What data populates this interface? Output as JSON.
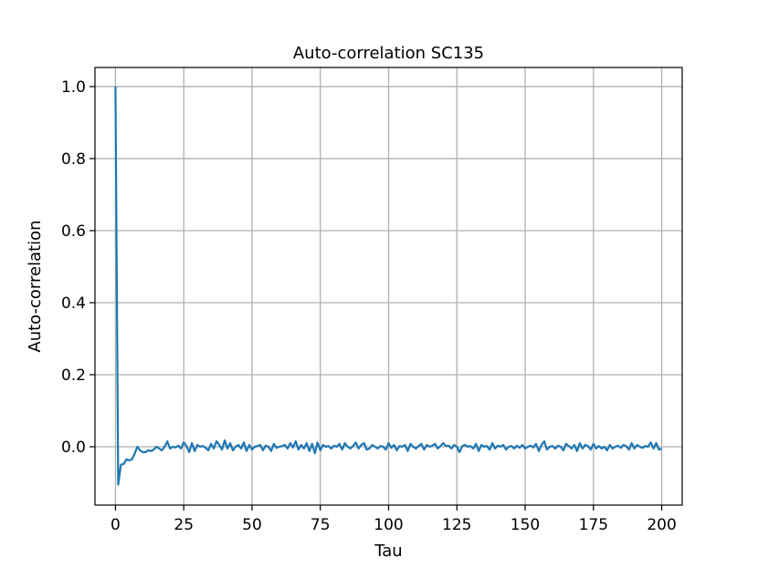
{
  "chart_data": {
    "type": "line",
    "title": "Auto-correlation SC135",
    "xlabel": "Tau",
    "ylabel": "Auto-correlation",
    "xlim": [
      -7.5,
      207.5
    ],
    "ylim": [
      -0.162,
      1.053
    ],
    "xticks": [
      0,
      25,
      50,
      75,
      100,
      125,
      150,
      175,
      200
    ],
    "xtick_labels": [
      "0",
      "25",
      "50",
      "75",
      "100",
      "125",
      "150",
      "175",
      "200"
    ],
    "yticks": [
      0.0,
      0.2,
      0.4,
      0.6,
      0.8,
      1.0
    ],
    "ytick_labels": [
      "0.0",
      "0.2",
      "0.4",
      "0.6",
      "0.8",
      "1.0"
    ],
    "grid": true,
    "series": [
      {
        "color": "#1f77b4",
        "x": [
          0,
          1,
          2,
          3,
          4,
          5,
          6,
          7,
          8,
          9,
          10,
          11,
          12,
          13,
          14,
          15,
          16,
          17,
          18,
          19,
          20,
          21,
          22,
          23,
          24,
          25,
          26,
          27,
          28,
          29,
          30,
          31,
          32,
          33,
          34,
          35,
          36,
          37,
          38,
          39,
          40,
          41,
          42,
          43,
          44,
          45,
          46,
          47,
          48,
          49,
          50,
          51,
          52,
          53,
          54,
          55,
          56,
          57,
          58,
          59,
          60,
          61,
          62,
          63,
          64,
          65,
          66,
          67,
          68,
          69,
          70,
          71,
          72,
          73,
          74,
          75,
          76,
          77,
          78,
          79,
          80,
          81,
          82,
          83,
          84,
          85,
          86,
          87,
          88,
          89,
          90,
          91,
          92,
          93,
          94,
          95,
          96,
          97,
          98,
          99,
          100,
          101,
          102,
          103,
          104,
          105,
          106,
          107,
          108,
          109,
          110,
          111,
          112,
          113,
          114,
          115,
          116,
          117,
          118,
          119,
          120,
          121,
          122,
          123,
          124,
          125,
          126,
          127,
          128,
          129,
          130,
          131,
          132,
          133,
          134,
          135,
          136,
          137,
          138,
          139,
          140,
          141,
          142,
          143,
          144,
          145,
          146,
          147,
          148,
          149,
          150,
          151,
          152,
          153,
          154,
          155,
          156,
          157,
          158,
          159,
          160,
          161,
          162,
          163,
          164,
          165,
          166,
          167,
          168,
          169,
          170,
          171,
          172,
          173,
          174,
          175,
          176,
          177,
          178,
          179,
          180,
          181,
          182,
          183,
          184,
          185,
          186,
          187,
          188,
          189,
          190,
          191,
          192,
          193,
          194,
          195,
          196,
          197,
          198,
          199,
          200
        ],
        "y": [
          1.0,
          -0.105,
          -0.05,
          -0.048,
          -0.035,
          -0.038,
          -0.035,
          -0.02,
          0.0,
          -0.01,
          -0.015,
          -0.015,
          -0.01,
          -0.012,
          -0.008,
          0.0,
          -0.005,
          -0.01,
          0.0,
          0.015,
          -0.005,
          0.0,
          -0.002,
          0.003,
          -0.005,
          0.012,
          0.002,
          -0.015,
          0.01,
          -0.012,
          0.005,
          0.0,
          0.002,
          -0.003,
          -0.01,
          0.008,
          -0.005,
          0.015,
          0.005,
          -0.008,
          0.018,
          -0.005,
          0.01,
          -0.01,
          0.0,
          0.005,
          -0.005,
          0.012,
          -0.012,
          0.005,
          -0.008,
          0.0,
          0.002,
          0.005,
          -0.01,
          0.003,
          0.0,
          -0.012,
          0.008,
          -0.003,
          0.0,
          0.002,
          0.005,
          -0.005,
          0.01,
          -0.002,
          0.015,
          -0.008,
          0.005,
          -0.005,
          0.01,
          -0.012,
          0.008,
          -0.018,
          0.012,
          -0.01,
          0.005,
          0.0,
          0.002,
          -0.005,
          0.003,
          0.0,
          0.008,
          -0.008,
          0.01,
          0.0,
          -0.005,
          0.002,
          0.012,
          -0.005,
          0.005,
          0.01,
          -0.008,
          -0.005,
          0.005,
          0.0,
          -0.005,
          0.002,
          0.0,
          -0.008,
          0.01,
          -0.003,
          0.005,
          -0.01,
          0.002,
          0.0,
          0.005,
          -0.012,
          0.008,
          0.0,
          -0.005,
          0.002,
          0.008,
          -0.008,
          0.005,
          0.0,
          0.003,
          0.008,
          -0.005,
          0.002,
          0.01,
          0.002,
          0.003,
          -0.005,
          0.005,
          0.0,
          -0.015,
          0.002,
          0.005,
          0.0,
          0.002,
          -0.005,
          0.008,
          -0.012,
          0.005,
          0.0,
          0.002,
          -0.008,
          0.01,
          -0.005,
          0.003,
          0.0,
          0.005,
          -0.008,
          0.0,
          0.002,
          -0.005,
          0.003,
          -0.003,
          0.005,
          -0.005,
          0.0,
          0.003,
          -0.002,
          0.008,
          -0.012,
          0.005,
          0.015,
          -0.008,
          0.0,
          0.002,
          -0.005,
          0.003,
          0.0,
          -0.01,
          0.008,
          0.002,
          -0.005,
          0.005,
          -0.012,
          0.01,
          -0.005,
          0.005,
          0.002,
          -0.008,
          0.008,
          -0.005,
          0.002,
          -0.005,
          0.0,
          -0.01,
          0.005,
          -0.005,
          0.0,
          0.003,
          -0.003,
          0.005,
          0.002,
          -0.008,
          0.01,
          -0.005,
          0.005,
          0.0,
          -0.003,
          0.002,
          0.0,
          0.012,
          -0.005,
          0.01,
          -0.008,
          -0.005
        ]
      }
    ]
  }
}
